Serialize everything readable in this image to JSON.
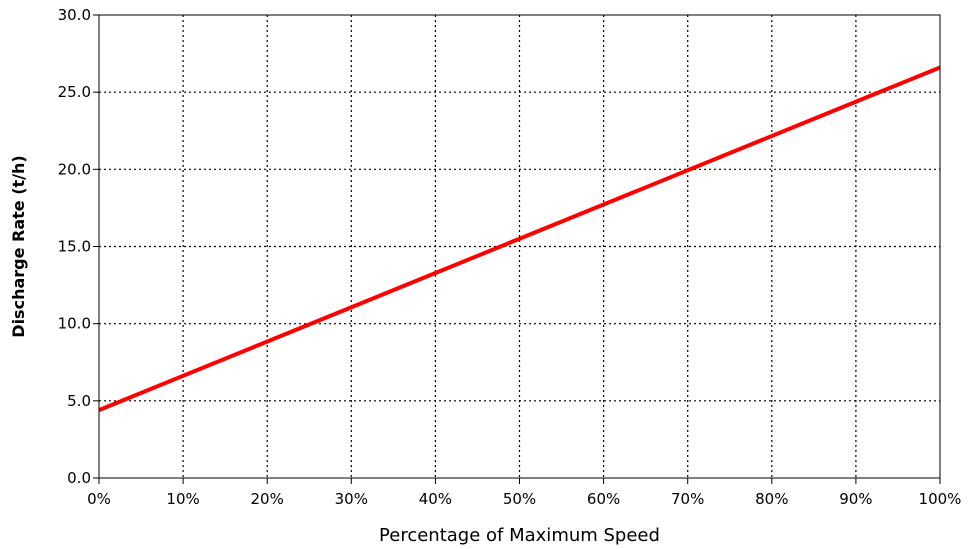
{
  "chart_data": {
    "type": "line",
    "title": "",
    "xlabel": "Percentage of Maximum Speed",
    "ylabel": "Discharge Rate (t/h)",
    "x": [
      0,
      100
    ],
    "xlim": [
      0,
      100
    ],
    "ylim": [
      0,
      30
    ],
    "x_ticks": [
      0,
      10,
      20,
      30,
      40,
      50,
      60,
      70,
      80,
      90,
      100
    ],
    "x_tick_labels": [
      "0%",
      "10%",
      "20%",
      "30%",
      "40%",
      "50%",
      "60%",
      "70%",
      "80%",
      "90%",
      "100%"
    ],
    "y_ticks": [
      0,
      5,
      10,
      15,
      20,
      25,
      30
    ],
    "y_tick_labels": [
      "0.0",
      "5.0",
      "10.0",
      "15.0",
      "20.0",
      "25.0",
      "30.0"
    ],
    "grid": true,
    "series": [
      {
        "values": [
          4.4,
          26.6
        ],
        "color": "#ff0000"
      }
    ]
  }
}
